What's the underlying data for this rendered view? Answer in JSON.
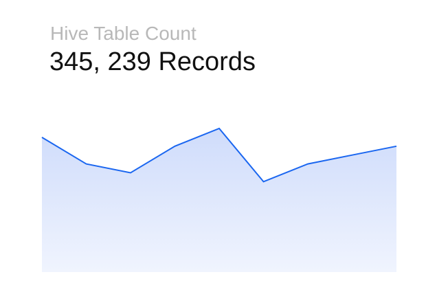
{
  "header": {
    "subtitle": "Hive Table Count",
    "headline": "345, 239 Records"
  },
  "colors": {
    "line": "#1a66f0",
    "area_top": "#cfdcfb",
    "area_bottom": "#f0f4fe",
    "subtitle_text": "#b8b8b8",
    "headline_text": "#111111"
  },
  "chart_data": {
    "type": "area",
    "x": [
      1,
      2,
      3,
      4,
      5,
      6,
      7,
      8,
      9
    ],
    "series": [
      {
        "values": [
          76,
          61,
          56,
          71,
          81,
          51,
          61,
          66,
          71
        ]
      }
    ],
    "ylim": [
      0,
      100
    ],
    "grid": false,
    "axes_visible": false
  }
}
